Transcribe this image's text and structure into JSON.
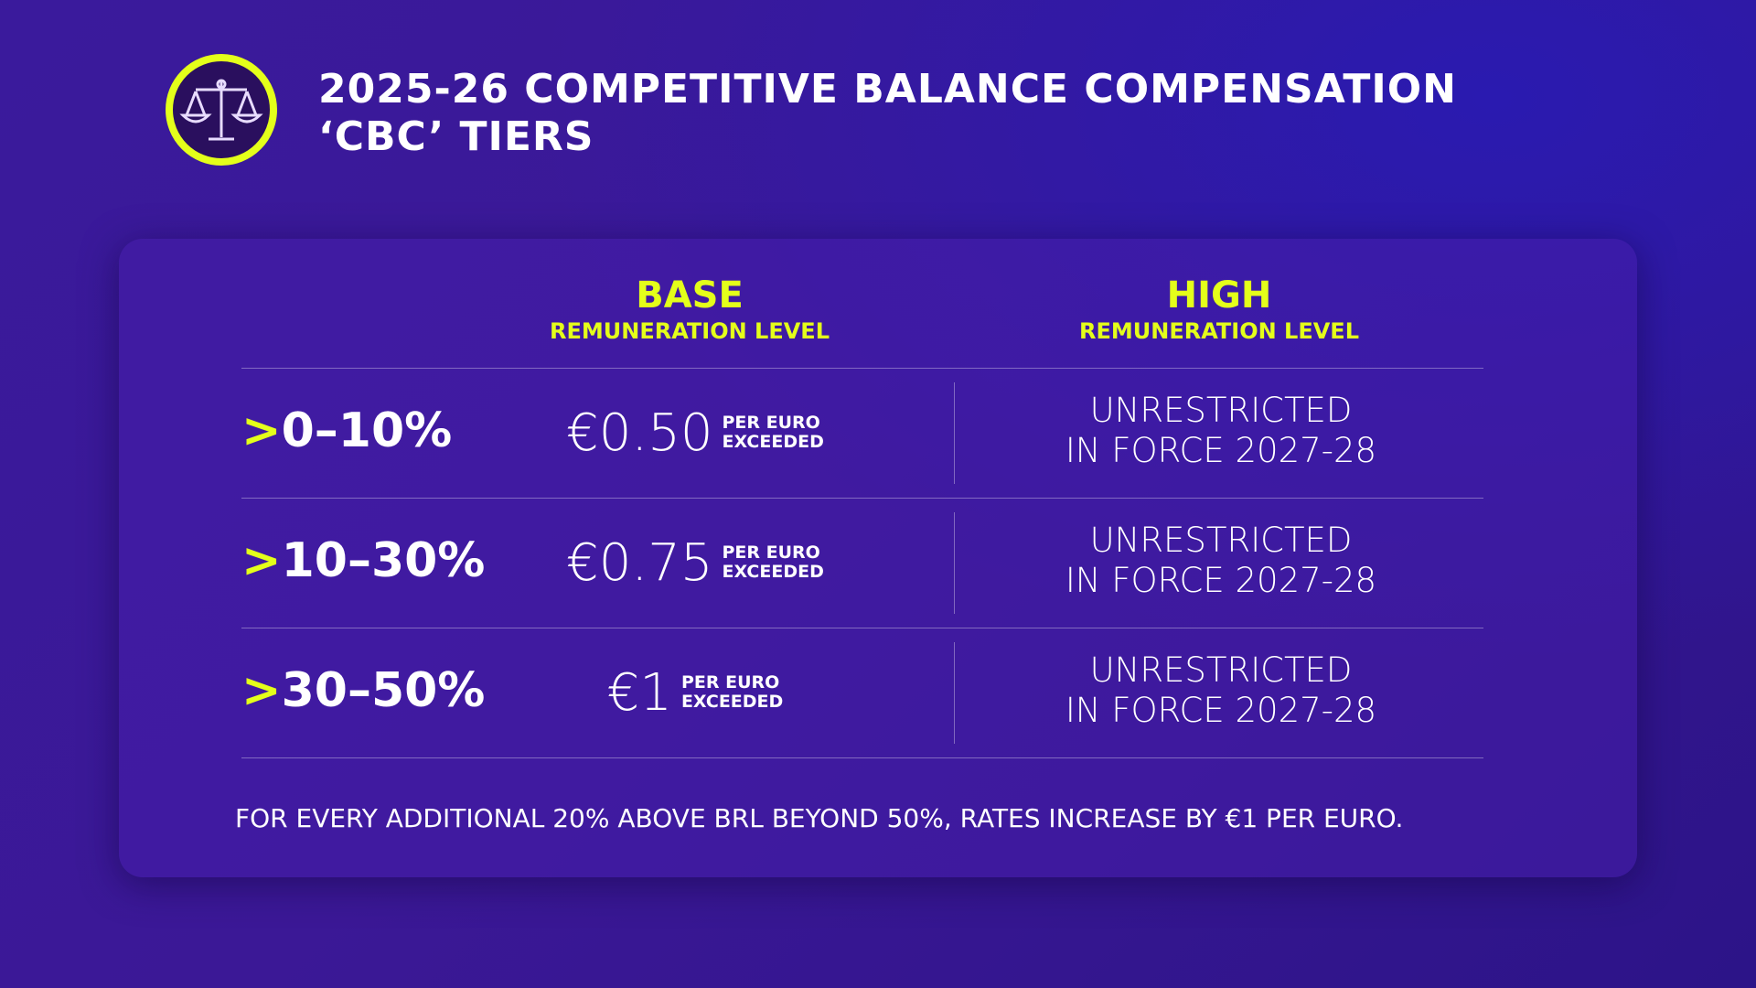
{
  "header": {
    "title_lines": [
      "2025-26 COMPETITIVE BALANCE COMPENSATION",
      "‘CBC’ TIERS"
    ]
  },
  "table": {
    "columns": [
      {
        "title": "BASE",
        "subtitle": "REMUNERATION LEVEL"
      },
      {
        "title": "HIGH",
        "subtitle": "REMUNERATION LEVEL"
      }
    ],
    "rows": [
      {
        "prefix": ">",
        "tier": "0–10%",
        "base_amount": "€0.50",
        "base_unit": [
          "PER EURO",
          "EXCEEDED"
        ],
        "high": [
          "UNRESTRICTED",
          "IN FORCE 2027-28"
        ]
      },
      {
        "prefix": ">",
        "tier": "10–30%",
        "base_amount": "€0.75",
        "base_unit": [
          "PER EURO",
          "EXCEEDED"
        ],
        "high": [
          "UNRESTRICTED",
          "IN FORCE 2027-28"
        ]
      },
      {
        "prefix": ">",
        "tier": "30–50%",
        "base_amount": "€1",
        "base_unit": [
          "PER EURO",
          "EXCEEDED"
        ],
        "high": [
          "UNRESTRICTED",
          "IN FORCE 2027-28"
        ]
      }
    ]
  },
  "footnote": "FOR EVERY ADDITIONAL 20% ABOVE BRL BEYOND 50%, RATES INCREASE BY €1 PER EURO."
}
